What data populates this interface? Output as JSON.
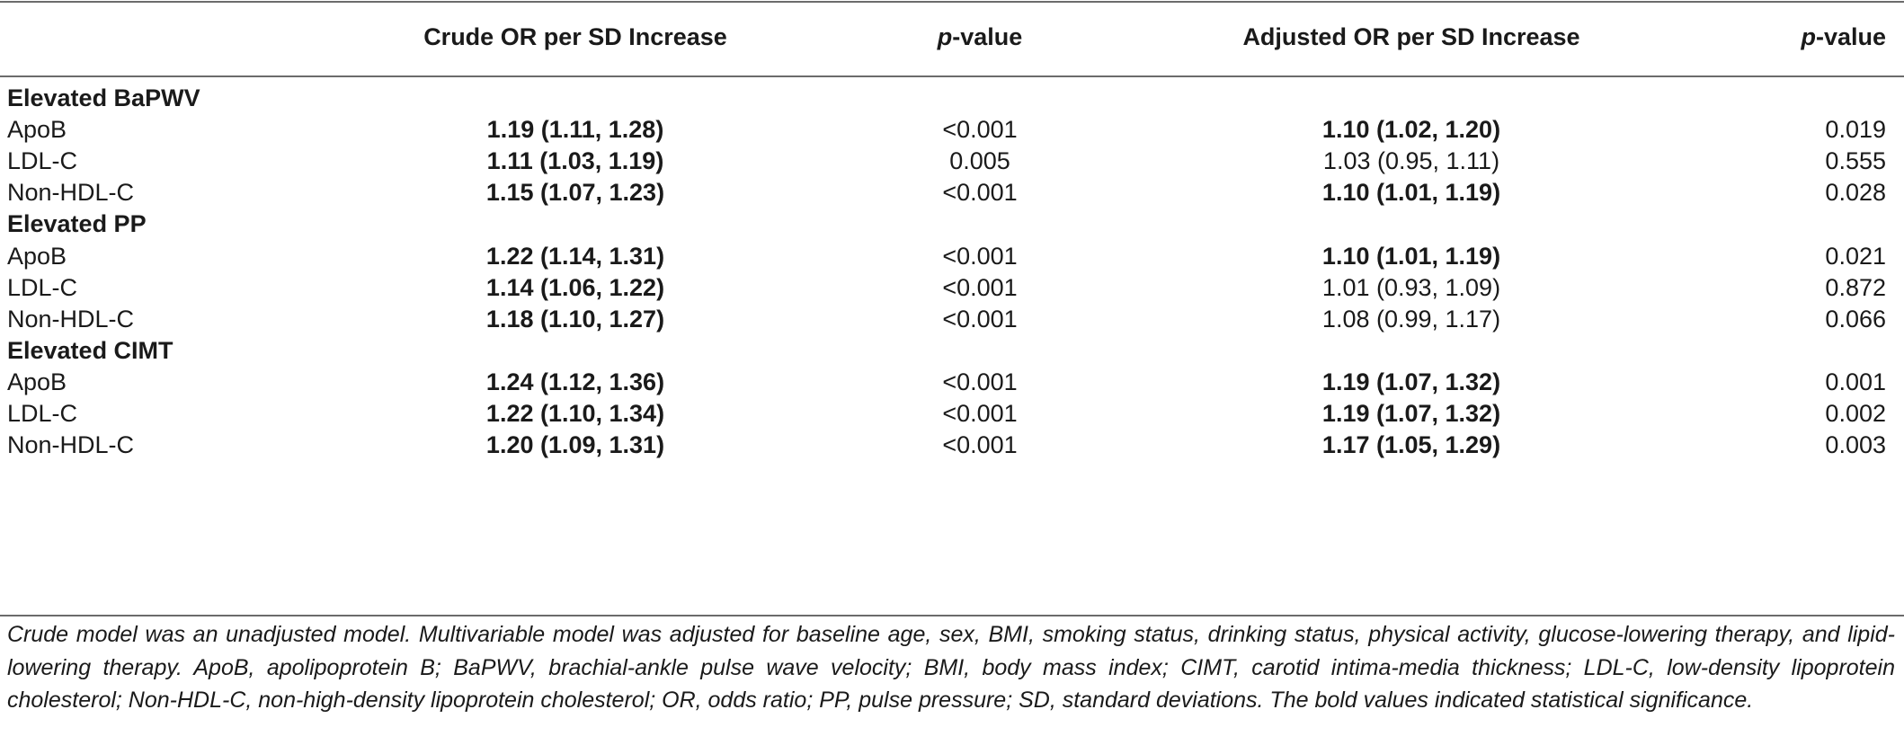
{
  "header": {
    "col_crude": "Crude OR per SD Increase",
    "col_p1_italic": "p",
    "col_p1_rest": "-value",
    "col_adj": "Adjusted OR per SD Increase",
    "col_p2_italic": "p",
    "col_p2_rest": "-value"
  },
  "sections": [
    {
      "title": "Elevated BaPWV",
      "rows": [
        {
          "label": "ApoB",
          "crude": "1.19 (1.11, 1.28)",
          "crude_bold": true,
          "p1": "<0.001",
          "adjusted": "1.10 (1.02, 1.20)",
          "adjusted_bold": true,
          "p2": "0.019"
        },
        {
          "label": "LDL-C",
          "crude": "1.11 (1.03, 1.19)",
          "crude_bold": true,
          "p1": "0.005",
          "adjusted": "1.03 (0.95, 1.11)",
          "adjusted_bold": false,
          "p2": "0.555"
        },
        {
          "label": "Non-HDL-C",
          "crude": "1.15 (1.07, 1.23)",
          "crude_bold": true,
          "p1": "<0.001",
          "adjusted": "1.10 (1.01, 1.19)",
          "adjusted_bold": true,
          "p2": "0.028"
        }
      ]
    },
    {
      "title": "Elevated PP",
      "rows": [
        {
          "label": "ApoB",
          "crude": "1.22 (1.14, 1.31)",
          "crude_bold": true,
          "p1": "<0.001",
          "adjusted": "1.10 (1.01, 1.19)",
          "adjusted_bold": true,
          "p2": "0.021"
        },
        {
          "label": "LDL-C",
          "crude": "1.14 (1.06, 1.22)",
          "crude_bold": true,
          "p1": "<0.001",
          "adjusted": "1.01 (0.93, 1.09)",
          "adjusted_bold": false,
          "p2": "0.872"
        },
        {
          "label": "Non-HDL-C",
          "crude": "1.18 (1.10, 1.27)",
          "crude_bold": true,
          "p1": "<0.001",
          "adjusted": "1.08 (0.99, 1.17)",
          "adjusted_bold": false,
          "p2": "0.066"
        }
      ]
    },
    {
      "title": "Elevated CIMT",
      "rows": [
        {
          "label": "ApoB",
          "crude": "1.24 (1.12, 1.36)",
          "crude_bold": true,
          "p1": "<0.001",
          "adjusted": "1.19 (1.07, 1.32)",
          "adjusted_bold": true,
          "p2": "0.001"
        },
        {
          "label": "LDL-C",
          "crude": "1.22 (1.10, 1.34)",
          "crude_bold": true,
          "p1": "<0.001",
          "adjusted": "1.19 (1.07, 1.32)",
          "adjusted_bold": true,
          "p2": "0.002"
        },
        {
          "label": "Non-HDL-C",
          "crude": "1.20 (1.09, 1.31)",
          "crude_bold": true,
          "p1": "<0.001",
          "adjusted": "1.17 (1.05, 1.29)",
          "adjusted_bold": true,
          "p2": "0.003"
        }
      ]
    }
  ],
  "footnote": "Crude model was an unadjusted model. Multivariable model was adjusted for baseline age, sex, BMI, smoking status, drinking status, physical activity, glucose-lowering therapy, and lipid-lowering therapy. ApoB, apolipoprotein B; BaPWV, brachial-ankle pulse wave velocity; BMI, body mass index; CIMT, carotid intima-media thickness; LDL-C, low-density lipoprotein cholesterol; Non-HDL-C, non-high-density lipoprotein cholesterol; OR, odds ratio; PP, pulse pressure; SD, standard deviations. The bold values indicated statistical significance."
}
